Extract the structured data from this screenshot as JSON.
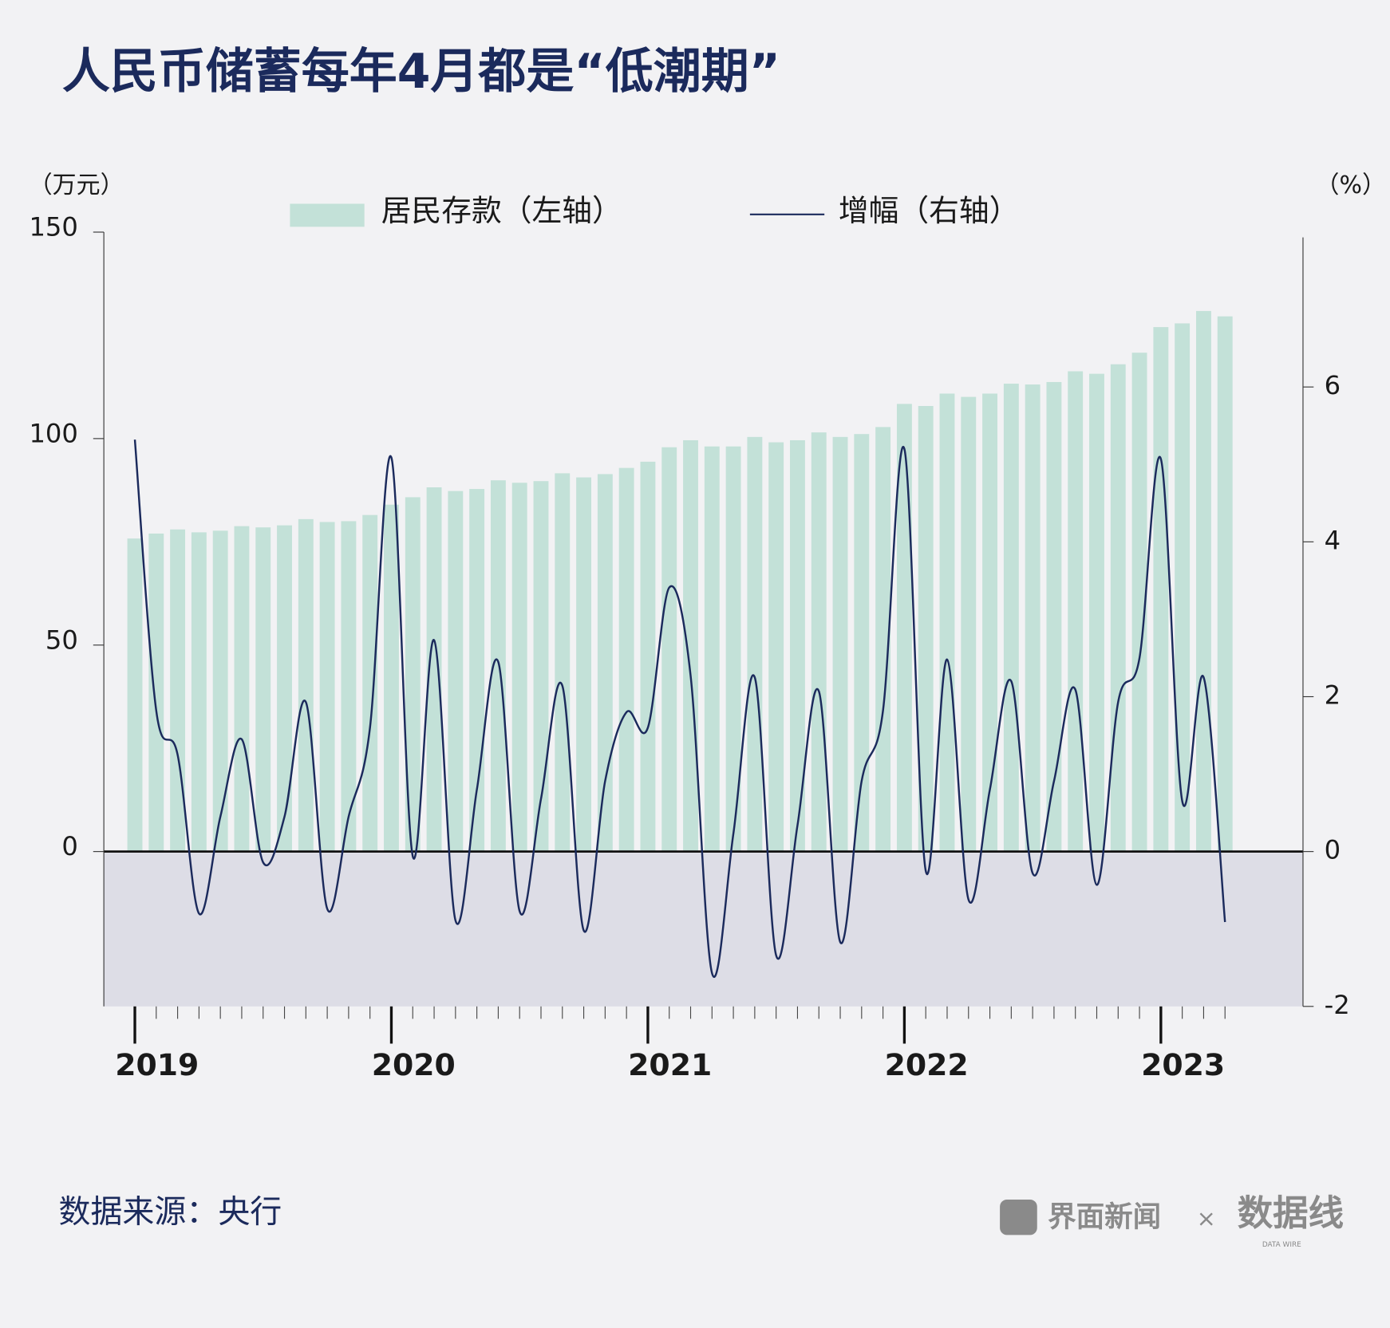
{
  "chart_data": {
    "type": "bar-line",
    "title": "人民币储蓄每年4月都是“低潮期”",
    "y_label": "（万元）",
    "y2_label": "（%）",
    "categories": [
      "2019",
      null,
      null,
      null,
      null,
      null,
      null,
      null,
      null,
      null,
      null,
      null,
      "2020",
      null,
      null,
      null,
      null,
      null,
      null,
      null,
      null,
      null,
      null,
      null,
      "2021",
      null,
      null,
      null,
      null,
      null,
      null,
      null,
      null,
      null,
      null,
      null,
      "2022",
      null,
      null,
      null,
      null,
      null,
      null,
      null,
      null,
      null,
      null,
      null,
      "2023",
      null,
      null,
      null
    ],
    "series": [
      {
        "name": "居民存款（左轴）",
        "type": "bar",
        "color": "#c3e1d8",
        "values": [
          75.8,
          77,
          78,
          77.3,
          77.7,
          78.8,
          78.5,
          79,
          80.5,
          79.8,
          80,
          81.5,
          84,
          85.8,
          88.2,
          87.3,
          87.8,
          89.9,
          89.3,
          89.7,
          91.6,
          90.6,
          91.4,
          92.9,
          94.4,
          97.9,
          99.6,
          98.1,
          98.1,
          100.4,
          99.1,
          99.6,
          101.5,
          100.4,
          101.1,
          102.8,
          108.4,
          107.9,
          110.9,
          110.1,
          110.9,
          113.3,
          113.1,
          113.7,
          116.3,
          115.7,
          118,
          120.8,
          127,
          127.9,
          130.9,
          129.6
        ]
      },
      {
        "name": "增幅（右轴）",
        "type": "line",
        "color": "#1b2a5c",
        "axis": "y2",
        "values": [
          5.32,
          1.82,
          1.25,
          -0.8,
          0.45,
          1.45,
          -0.14,
          0.45,
          1.93,
          -0.74,
          0.45,
          1.6,
          5.09,
          -0.06,
          2.73,
          -0.89,
          0.8,
          2.45,
          -0.77,
          0.68,
          2.14,
          -1.02,
          0.91,
          1.8,
          1.6,
          3.41,
          2.27,
          -1.57,
          0.23,
          2.25,
          -1.34,
          0.34,
          2.07,
          -1.17,
          0.91,
          1.82,
          5.2,
          -0.25,
          2.48,
          -0.62,
          0.8,
          2.2,
          -0.28,
          0.91,
          2.09,
          -0.43,
          1.93,
          2.5,
          5.07,
          0.65,
          2.25,
          -0.91
        ]
      }
    ],
    "ylim": [
      -37.5,
      150
    ],
    "yticks": [
      0,
      50,
      100,
      150
    ],
    "y2lim": [
      -2,
      8
    ],
    "y2ticks": [
      -2,
      0,
      2,
      4,
      6
    ]
  },
  "footer": {
    "source": "数据来源：央行",
    "brand": "界面新闻",
    "separator": "×",
    "logo": "数据线",
    "logo_sub": "DATA WIRE"
  }
}
